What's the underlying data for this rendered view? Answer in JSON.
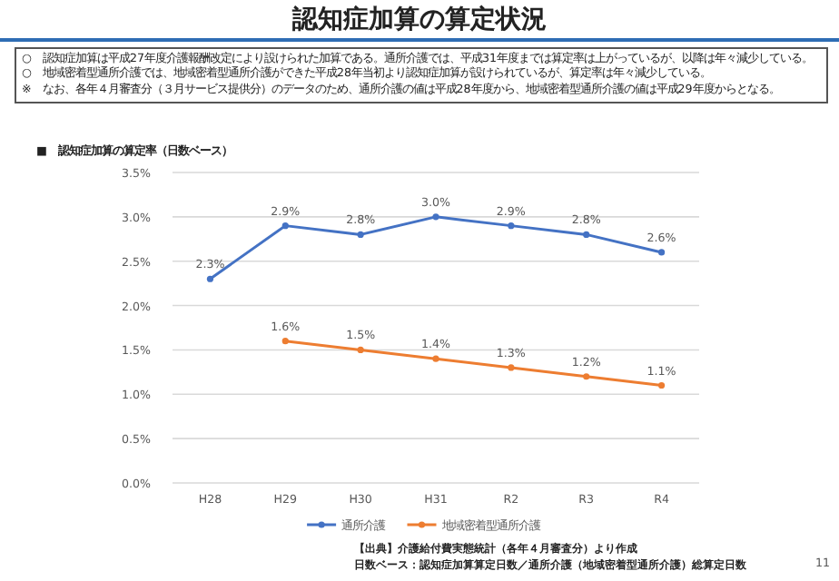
{
  "chart_data": {
    "type": "line",
    "title": "認知症加算の算定状況",
    "subtitle": "■　認知症加算の算定率（日数ベース）",
    "categories": [
      "H28",
      "H29",
      "H30",
      "H31",
      "R2",
      "R3",
      "R4"
    ],
    "series": [
      {
        "name": "通所介護",
        "color": "#4472c4",
        "values": [
          2.3,
          2.9,
          2.8,
          3.0,
          2.9,
          2.8,
          2.6
        ],
        "value_labels": [
          "2.3%",
          "2.9%",
          "2.8%",
          "3.0%",
          "2.9%",
          "2.8%",
          "2.6%"
        ]
      },
      {
        "name": "地域密着型通所介護",
        "color": "#ed7d31",
        "values": [
          null,
          1.6,
          1.5,
          1.4,
          1.3,
          1.2,
          1.1
        ],
        "value_labels": [
          null,
          "1.6%",
          "1.5%",
          "1.4%",
          "1.3%",
          "1.2%",
          "1.1%"
        ]
      }
    ],
    "ylim": [
      0,
      3.5
    ],
    "yticks": [
      {
        "value": 0,
        "label": "0.0%"
      },
      {
        "value": 0.5,
        "label": "0.5%"
      },
      {
        "value": 1.0,
        "label": "1.0%"
      },
      {
        "value": 1.5,
        "label": "1.5%"
      },
      {
        "value": 2.0,
        "label": "2.0%"
      },
      {
        "value": 2.5,
        "label": "2.5%"
      },
      {
        "value": 3.0,
        "label": "3.0%"
      },
      {
        "value": 3.5,
        "label": "3.5%"
      }
    ],
    "grid": "y",
    "legend": "bottom",
    "marker": "circle",
    "line_style": "solid",
    "annotations": [
      "○　認知症加算は平成27年度介護報酬改定により設けられた加算である。通所介護では、平成31年度までは算定率は上がっているが、以降は年々減少している。",
      "○　地域密着型通所介護では、地域密着型通所介護ができた平成28年当初より認知症加算が設けられているが、算定率は年々減少している。",
      "※　なお、各年４月審査分（３月サービス提供分）のデータのため、通所介護の値は平成28年度から、地域密着型通所介護の値は平成29年度からとなる。",
      "【出典】介護給付費実態統計（各年４月審査分）より作成",
      "日数ベース：認知症加算算定日数／通所介護（地域密着型通所介護）総算定日数",
      "11"
    ]
  }
}
